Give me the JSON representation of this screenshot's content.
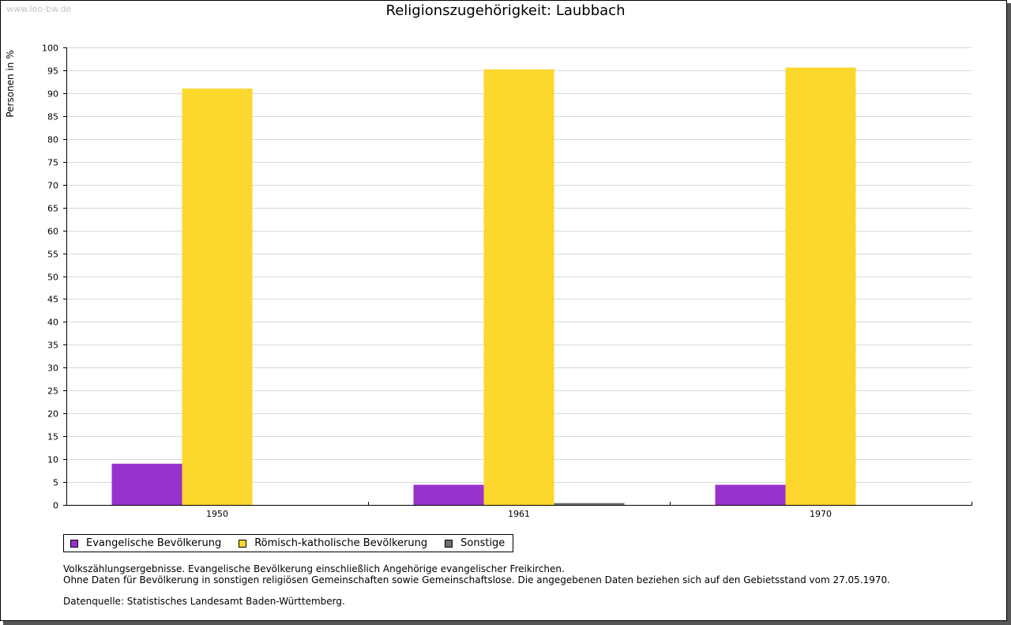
{
  "watermark": "www.leo-bw.de",
  "legend_items": [
    {
      "label": "Evangelische Bevölkerung",
      "color": "#9932cc"
    },
    {
      "label": "Römisch-katholische Bevölkerung",
      "color": "#fcd72e"
    },
    {
      "label": "Sonstige",
      "color": "#707070"
    }
  ],
  "notes": {
    "line1": "Volkszählungsergebnisse. Evangelische Bevölkerung einschließlich Angehörige evangelischer Freikirchen.",
    "line2": "Ohne Daten für Bevölkerung in sonstigen religiösen Gemeinschaften sowie Gemeinschaftslose. Die angegebenen Daten beziehen sich auf den Gebietsstand vom 27.05.1970.",
    "source": "Datenquelle: Statistisches Landesamt Baden-Württemberg."
  },
  "chart_data": {
    "type": "bar",
    "title": "Religionszugehörigkeit: Laubbach",
    "xlabel": "",
    "ylabel": "Personen in %",
    "ylim": [
      0,
      100
    ],
    "ytick_step": 5,
    "grid": true,
    "legend_position": "bottom-left",
    "categories": [
      "1950",
      "1961",
      "1970"
    ],
    "series": [
      {
        "name": "Evangelische Bevölkerung",
        "color": "#9932cc",
        "values": [
          9.0,
          4.4,
          4.4
        ]
      },
      {
        "name": "Römisch-katholische Bevölkerung",
        "color": "#fcd72e",
        "values": [
          91.0,
          95.2,
          95.6
        ]
      },
      {
        "name": "Sonstige",
        "color": "#707070",
        "values": [
          0.0,
          0.4,
          0.0
        ]
      }
    ]
  }
}
